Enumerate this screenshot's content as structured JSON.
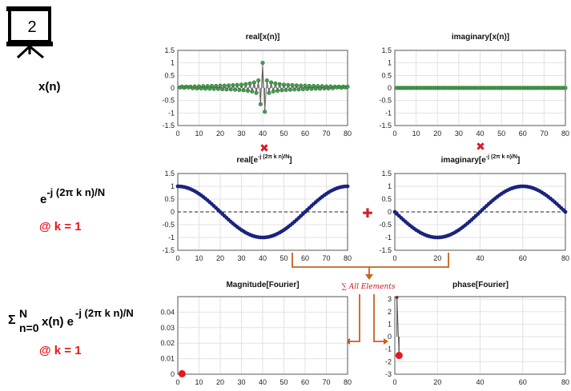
{
  "slide_number": "2",
  "labels": {
    "xn": "x(n)",
    "exp_base": "e",
    "exp_power": "-j (2π k n)/N",
    "k_label_1": "@ k = 1",
    "sum_symbol": "Σ",
    "sum_upper": "N",
    "sum_lower": "n=0",
    "sum_expr": "x(n) e",
    "sum_power": "-j (2π k n)/N",
    "k_label_2": "@ k = 1",
    "sum_all": "∑ All Elements",
    "times_1": "✖",
    "times_2": "✖",
    "plus": "✚"
  },
  "colors": {
    "green_marker": "#3fb24a",
    "navy": "#1a237e",
    "orange_arrow": "#c8611d",
    "red": "#e8161b"
  },
  "chart_data": [
    {
      "id": "real-xn",
      "type": "stem",
      "title": "real[x(n)]",
      "xlim": [
        0,
        80
      ],
      "ylim": [
        -1.5,
        1.5
      ],
      "xticks": [
        0,
        10,
        20,
        30,
        40,
        50,
        60,
        70,
        80
      ],
      "yticks": [
        1.5,
        1,
        0.5,
        0,
        -0.5,
        -1,
        -1.5
      ],
      "x": [
        1,
        2,
        3,
        4,
        5,
        6,
        7,
        8,
        9,
        10,
        11,
        12,
        13,
        14,
        15,
        16,
        17,
        18,
        19,
        20,
        21,
        22,
        23,
        24,
        25,
        26,
        27,
        28,
        29,
        30,
        31,
        32,
        33,
        34,
        35,
        36,
        37,
        38,
        39,
        40,
        41,
        42,
        43,
        44,
        45,
        46,
        47,
        48,
        49,
        50,
        51,
        52,
        53,
        54,
        55,
        56,
        57,
        58,
        59,
        60,
        61,
        62,
        63,
        64,
        65,
        66,
        67,
        68,
        69,
        70,
        71,
        72,
        73,
        74,
        75,
        76,
        77,
        78,
        79,
        80
      ],
      "y": [
        0.02,
        0.05,
        0.01,
        0.05,
        0.02,
        0.05,
        -0.01,
        0.06,
        -0.02,
        0.06,
        -0.02,
        0.07,
        -0.03,
        0.07,
        -0.03,
        0.08,
        -0.04,
        0.08,
        -0.04,
        0.09,
        -0.05,
        0.09,
        -0.06,
        0.1,
        -0.06,
        0.11,
        -0.07,
        0.12,
        -0.08,
        0.13,
        -0.09,
        0.15,
        -0.11,
        0.18,
        -0.14,
        0.22,
        -0.2,
        0.3,
        -0.65,
        1.0,
        -0.95,
        0.3,
        -0.2,
        0.22,
        -0.14,
        0.18,
        -0.11,
        0.15,
        -0.09,
        0.13,
        -0.08,
        0.12,
        -0.07,
        0.11,
        -0.06,
        0.1,
        -0.06,
        0.09,
        -0.05,
        0.09,
        -0.04,
        0.08,
        -0.04,
        0.08,
        -0.03,
        0.07,
        -0.03,
        0.07,
        -0.02,
        0.06,
        -0.02,
        0.06,
        -0.01,
        0.05,
        0.02,
        0.05,
        0.01,
        0.05,
        0.02,
        0.05
      ]
    },
    {
      "id": "imag-xn",
      "type": "stem",
      "title": "imaginary[x(n)]",
      "xlim": [
        0,
        80
      ],
      "ylim": [
        -1.5,
        1.5
      ],
      "xticks": [
        0,
        10,
        20,
        30,
        40,
        50,
        60,
        70,
        80
      ],
      "yticks": [
        1.5,
        1,
        0.5,
        0,
        -0.5,
        -1,
        -1.5
      ],
      "x": [
        1,
        2,
        3,
        4,
        5,
        6,
        7,
        8,
        9,
        10,
        11,
        12,
        13,
        14,
        15,
        16,
        17,
        18,
        19,
        20,
        21,
        22,
        23,
        24,
        25,
        26,
        27,
        28,
        29,
        30,
        31,
        32,
        33,
        34,
        35,
        36,
        37,
        38,
        39,
        40,
        41,
        42,
        43,
        44,
        45,
        46,
        47,
        48,
        49,
        50,
        51,
        52,
        53,
        54,
        55,
        56,
        57,
        58,
        59,
        60,
        61,
        62,
        63,
        64,
        65,
        66,
        67,
        68,
        69,
        70,
        71,
        72,
        73,
        74,
        75,
        76,
        77,
        78,
        79,
        80
      ],
      "y": [
        0,
        0,
        0,
        0,
        0,
        0,
        0,
        0,
        0,
        0,
        0,
        0,
        0,
        0,
        0,
        0,
        0,
        0,
        0,
        0,
        0,
        0,
        0,
        0,
        0,
        0,
        0,
        0,
        0,
        0,
        0,
        0,
        0,
        0,
        0,
        0,
        0,
        0,
        0,
        0,
        0,
        0,
        0,
        0,
        0,
        0,
        0,
        0,
        0,
        0,
        0,
        0,
        0,
        0,
        0,
        0,
        0,
        0,
        0,
        0,
        0,
        0,
        0,
        0,
        0,
        0,
        0,
        0,
        0,
        0,
        0,
        0,
        0,
        0,
        0,
        0,
        0,
        0,
        0,
        0
      ]
    },
    {
      "id": "real-exp",
      "type": "stem",
      "title_main": "real[e",
      "title_sup": "-j (2π k n)/N",
      "title_end": "]",
      "xlim": [
        0,
        80
      ],
      "ylim": [
        -1.5,
        1.5
      ],
      "xticks": [
        0,
        10,
        20,
        30,
        40,
        50,
        60,
        70,
        80
      ],
      "yticks": [
        1.5,
        1,
        0.5,
        0,
        -0.5,
        -1,
        -1.5
      ],
      "function": "cos(2*pi*n/80)",
      "n_range": [
        0,
        80
      ]
    },
    {
      "id": "imag-exp",
      "type": "stem",
      "title_main": "imaginary[e",
      "title_sup": "-j (2π k n)/N",
      "title_end": "]",
      "xlim": [
        0,
        80
      ],
      "ylim": [
        -1.5,
        1.5
      ],
      "xticks": [
        0,
        20,
        40,
        60,
        80
      ],
      "yticks": [
        1.5,
        1,
        0.5,
        0,
        -0.5,
        -1,
        -1.5
      ],
      "function": "-sin(2*pi*n/80)",
      "n_range": [
        0,
        80
      ]
    },
    {
      "id": "magnitude",
      "type": "stem",
      "title": "Magnitude[Fourier]",
      "xlim": [
        0,
        80
      ],
      "ylim": [
        0,
        0.05
      ],
      "xticks": [
        0,
        10,
        20,
        30,
        40,
        50,
        60,
        70,
        80
      ],
      "yticks": [
        0.04,
        0.03,
        0.02,
        0.01,
        0
      ],
      "x": [
        1,
        2
      ],
      "y": [
        0.0003,
        0.0003
      ],
      "highlight": {
        "x": 2,
        "y": 0.0003
      }
    },
    {
      "id": "phase",
      "type": "stem",
      "title": "phase[Fourier]",
      "xlim": [
        0,
        80
      ],
      "ylim": [
        -3,
        3.2
      ],
      "xticks": [
        0,
        20,
        40,
        60,
        80
      ],
      "yticks": [
        3,
        2,
        1,
        0,
        -1,
        -2,
        -3
      ],
      "x": [
        1,
        2
      ],
      "y": [
        3.14,
        -1.5
      ],
      "highlight": {
        "x": 2,
        "y": -1.5
      }
    }
  ]
}
